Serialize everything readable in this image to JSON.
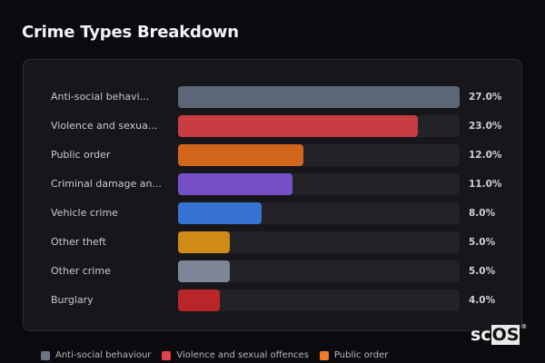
{
  "header": {
    "title": "Crime Types Breakdown"
  },
  "chart_data": {
    "type": "bar",
    "orientation": "horizontal",
    "title": "Crime Types Breakdown",
    "categories": [
      "Anti-social behaviour",
      "Violence and sexual offences",
      "Public order",
      "Criminal damage and arson",
      "Vehicle crime",
      "Other theft",
      "Other crime",
      "Burglary"
    ],
    "display_labels": [
      "Anti-social behavi...",
      "Violence and sexua...",
      "Public order",
      "Criminal damage an...",
      "Vehicle crime",
      "Other theft",
      "Other crime",
      "Burglary"
    ],
    "values": [
      27.0,
      23.0,
      12.0,
      11.0,
      8.0,
      5.0,
      5.0,
      4.0
    ],
    "value_labels": [
      "27.0%",
      "23.0%",
      "12.0%",
      "11.0%",
      "8.0%",
      "5.0%",
      "5.0%",
      "4.0%"
    ],
    "colors": [
      "#5b6777",
      "#c83c42",
      "#d2651c",
      "#7750c8",
      "#3672d0",
      "#d08a18",
      "#7c8698",
      "#b8262a"
    ],
    "unit": "%",
    "xlabel": "",
    "ylabel": "",
    "grid": false,
    "legend_position": "bottom"
  },
  "legend": {
    "items": [
      {
        "label": "Anti-social behaviour",
        "color": "#6a7588"
      },
      {
        "label": "Violence and sexual offences",
        "color": "#e5434a"
      },
      {
        "label": "Public order",
        "color": "#f07a22"
      }
    ]
  },
  "watermark": {
    "prefix": "sc",
    "highlight": "OS",
    "mark": "®"
  }
}
